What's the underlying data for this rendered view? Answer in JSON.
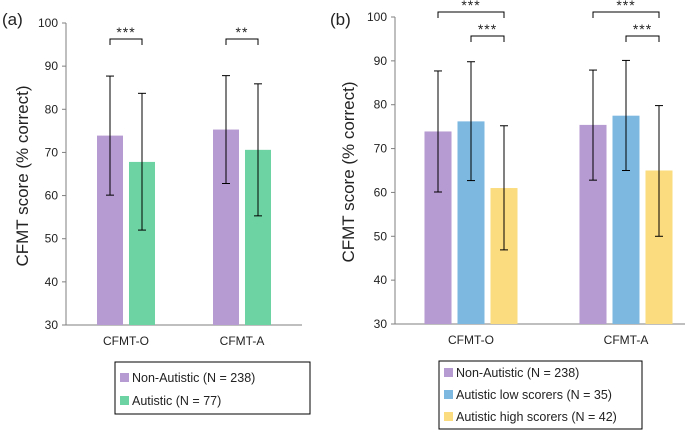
{
  "chart_data": [
    {
      "panel_label": "(a)",
      "type": "bar",
      "ylabel": "CFMT score (% correct)",
      "ylim": [
        30,
        100
      ],
      "yticks": [
        "30",
        "40",
        "50",
        "60",
        "70",
        "80",
        "90",
        "100"
      ],
      "categories": [
        "CFMT-O",
        "CFMT-A"
      ],
      "series": [
        {
          "name": "Non-Autistic (N = 238)",
          "color": "#b69ad2",
          "values": [
            73.9,
            75.3
          ],
          "err_low": [
            60.1,
            62.8
          ],
          "err_high": [
            87.7,
            87.8
          ]
        },
        {
          "name": "Autistic (N = 77)",
          "color": "#6dd3a2",
          "values": [
            67.8,
            70.6
          ],
          "err_low": [
            52.0,
            55.3
          ],
          "err_high": [
            83.7,
            85.9
          ]
        }
      ],
      "significance": [
        {
          "category": 0,
          "from": 0,
          "to": 1,
          "label": "***"
        },
        {
          "category": 1,
          "from": 0,
          "to": 1,
          "label": "**"
        }
      ]
    },
    {
      "panel_label": "(b)",
      "type": "bar",
      "ylabel": "CFMT score (% correct)",
      "ylim": [
        30,
        100
      ],
      "yticks": [
        "30",
        "40",
        "50",
        "60",
        "70",
        "80",
        "90",
        "100"
      ],
      "categories": [
        "CFMT-O",
        "CFMT-A"
      ],
      "series": [
        {
          "name": "Non-Autistic (N = 238)",
          "color": "#b69ad2",
          "values": [
            73.9,
            75.4
          ],
          "err_low": [
            60.1,
            62.8
          ],
          "err_high": [
            87.7,
            87.9
          ]
        },
        {
          "name": "Autistic low scorers (N = 35)",
          "color": "#7db8e0",
          "values": [
            76.2,
            77.5
          ],
          "err_low": [
            62.7,
            65.0
          ],
          "err_high": [
            89.8,
            90.1
          ]
        },
        {
          "name": "Autistic high scorers (N = 42)",
          "color": "#fbdc7e",
          "values": [
            61.0,
            65.0
          ],
          "err_low": [
            46.9,
            50.0
          ],
          "err_high": [
            75.2,
            79.8
          ]
        }
      ],
      "significance": [
        {
          "category": 0,
          "from": 0,
          "to": 2,
          "label": "***",
          "level": 1
        },
        {
          "category": 0,
          "from": 1,
          "to": 2,
          "label": "***",
          "level": 0
        },
        {
          "category": 1,
          "from": 0,
          "to": 2,
          "label": "***",
          "level": 1
        },
        {
          "category": 1,
          "from": 1,
          "to": 2,
          "label": "***",
          "level": 0
        }
      ]
    }
  ]
}
